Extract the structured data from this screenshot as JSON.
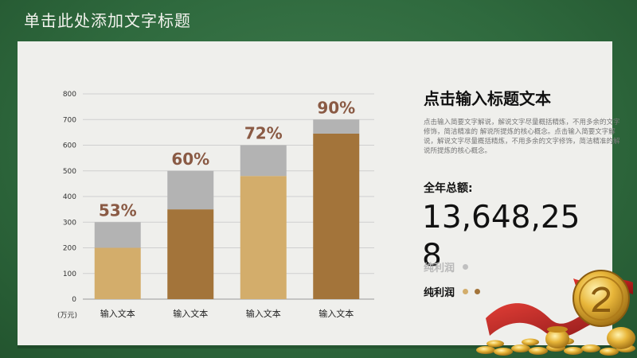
{
  "slide": {
    "title": "单击此处添加文字标题"
  },
  "side": {
    "title": "点击输入标题文本",
    "description": "点击输入简要文字解说，解说文字尽量概括精炼，不用多余的文字修饰，简洁精准的 解说所提炼的核心概念。点击输入简要文字解说，解说文字尽量概括精炼，不用多余的文字修饰，简洁精准的解说所提炼的核心概念。",
    "total_label": "全年总额:",
    "total_value": "13,648,258",
    "legend": [
      {
        "label": "纯利润",
        "color": "#c0c0c0"
      },
      {
        "label": "纯利润",
        "colors": [
          "#d3ad6b",
          "#a3743a"
        ]
      }
    ]
  },
  "chart_data": {
    "type": "bar",
    "categories": [
      "输入文本",
      "输入文本",
      "输入文本",
      "输入文本"
    ],
    "series": [
      {
        "values": [
          200,
          350,
          480,
          645
        ],
        "colors": [
          "#d3ad6b",
          "#a3743a",
          "#d3ad6b",
          "#a3743a"
        ]
      },
      {
        "values": [
          100,
          150,
          120,
          55
        ],
        "color": "#b3b3b3"
      }
    ],
    "data_labels": [
      "53%",
      "60%",
      "72%",
      "90%"
    ],
    "yticks": [
      "0",
      "100",
      "200",
      "300",
      "400",
      "500",
      "600",
      "700",
      "800"
    ],
    "unit_label": "(万元)",
    "ylim": [
      0,
      800
    ],
    "grid": true,
    "label_color": "#8a5a44"
  }
}
